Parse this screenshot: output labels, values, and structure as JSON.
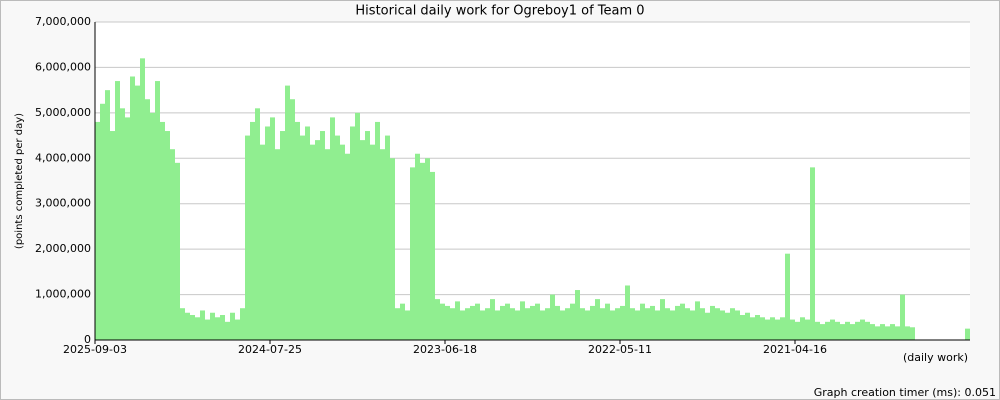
{
  "chart_data": {
    "type": "bar",
    "title": "Historical daily work for Ogreboy1 of Team 0",
    "ylabel": "(points completed per day)",
    "xlabel": "(daily work)",
    "annotation": "Graph creation timer (ms): 0.051",
    "color": "#90ee90",
    "grid": true,
    "ylim": [
      0,
      7000000
    ],
    "yticks": [
      0,
      {
        "value": 1000000,
        "label": "1,000,000"
      },
      {
        "value": 2000000,
        "label": "2,000,000"
      },
      {
        "value": 3000000,
        "label": "3,000,000"
      },
      {
        "value": 4000000,
        "label": "4,000,000"
      },
      {
        "value": 5000000,
        "label": "5,000,000"
      },
      {
        "value": 6000000,
        "label": "6,000,000"
      },
      {
        "value": 7000000,
        "label": "7,000,000"
      }
    ],
    "categories": [
      "2025-09-03",
      null,
      null,
      null,
      null,
      null,
      null,
      null,
      null,
      null,
      null,
      null,
      null,
      null,
      null,
      null,
      null,
      null,
      null,
      null,
      null,
      null,
      null,
      null,
      null,
      null,
      null,
      null,
      null,
      null,
      null,
      null,
      null,
      null,
      null,
      "2024-07-25",
      null,
      null,
      null,
      null,
      null,
      null,
      null,
      null,
      null,
      null,
      null,
      null,
      null,
      null,
      null,
      null,
      null,
      null,
      null,
      null,
      null,
      null,
      null,
      null,
      null,
      null,
      null,
      null,
      null,
      null,
      null,
      null,
      null,
      null,
      "2023-06-18",
      null,
      null,
      null,
      null,
      null,
      null,
      null,
      null,
      null,
      null,
      null,
      null,
      null,
      null,
      null,
      null,
      null,
      null,
      null,
      null,
      null,
      null,
      null,
      null,
      null,
      null,
      null,
      null,
      null,
      null,
      null,
      null,
      null,
      null,
      "2022-05-11",
      null,
      null,
      null,
      null,
      null,
      null,
      null,
      null,
      null,
      null,
      null,
      null,
      null,
      null,
      null,
      null,
      null,
      null,
      null,
      null,
      null,
      null,
      null,
      null,
      null,
      null,
      null,
      null,
      null,
      null,
      null,
      null,
      null,
      null,
      "2021-04-16",
      null,
      null,
      null,
      null,
      null,
      null,
      null,
      null,
      null,
      null,
      null,
      null,
      null,
      null,
      null,
      null,
      null,
      null,
      null,
      null,
      null,
      null,
      null,
      null,
      null,
      null,
      null,
      null,
      null,
      null,
      null,
      null,
      null,
      null
    ],
    "values": [
      4800000,
      5200000,
      5500000,
      4600000,
      5700000,
      5100000,
      4900000,
      5800000,
      5600000,
      6200000,
      5300000,
      5000000,
      5700000,
      4800000,
      4600000,
      4200000,
      3900000,
      700000,
      600000,
      550000,
      500000,
      650000,
      450000,
      600000,
      500000,
      550000,
      400000,
      600000,
      450000,
      700000,
      4500000,
      4800000,
      5100000,
      4300000,
      4700000,
      4900000,
      4200000,
      4600000,
      5600000,
      5300000,
      4800000,
      4500000,
      4700000,
      4300000,
      4400000,
      4600000,
      4200000,
      4900000,
      4500000,
      4300000,
      4100000,
      4700000,
      5000000,
      4400000,
      4600000,
      4300000,
      4800000,
      4200000,
      4500000,
      4000000,
      700000,
      800000,
      650000,
      3800000,
      4100000,
      3900000,
      4000000,
      3700000,
      900000,
      800000,
      750000,
      700000,
      850000,
      650000,
      700000,
      750000,
      800000,
      650000,
      700000,
      900000,
      650000,
      750000,
      800000,
      700000,
      650000,
      850000,
      700000,
      750000,
      800000,
      650000,
      700000,
      1000000,
      750000,
      650000,
      700000,
      800000,
      1100000,
      700000,
      650000,
      750000,
      900000,
      700000,
      800000,
      650000,
      700000,
      750000,
      1200000,
      700000,
      650000,
      800000,
      700000,
      750000,
      650000,
      900000,
      700000,
      650000,
      750000,
      800000,
      700000,
      650000,
      850000,
      700000,
      600000,
      750000,
      700000,
      650000,
      600000,
      700000,
      650000,
      550000,
      600000,
      500000,
      550000,
      500000,
      450000,
      500000,
      450000,
      500000,
      1900000,
      450000,
      400000,
      500000,
      450000,
      3800000,
      400000,
      350000,
      400000,
      450000,
      400000,
      350000,
      400000,
      350000,
      400000,
      450000,
      400000,
      350000,
      300000,
      350000,
      300000,
      350000,
      300000,
      1000000,
      300000,
      280000,
      null,
      null,
      null,
      null,
      null,
      null,
      null,
      null,
      null,
      null,
      250000
    ]
  }
}
